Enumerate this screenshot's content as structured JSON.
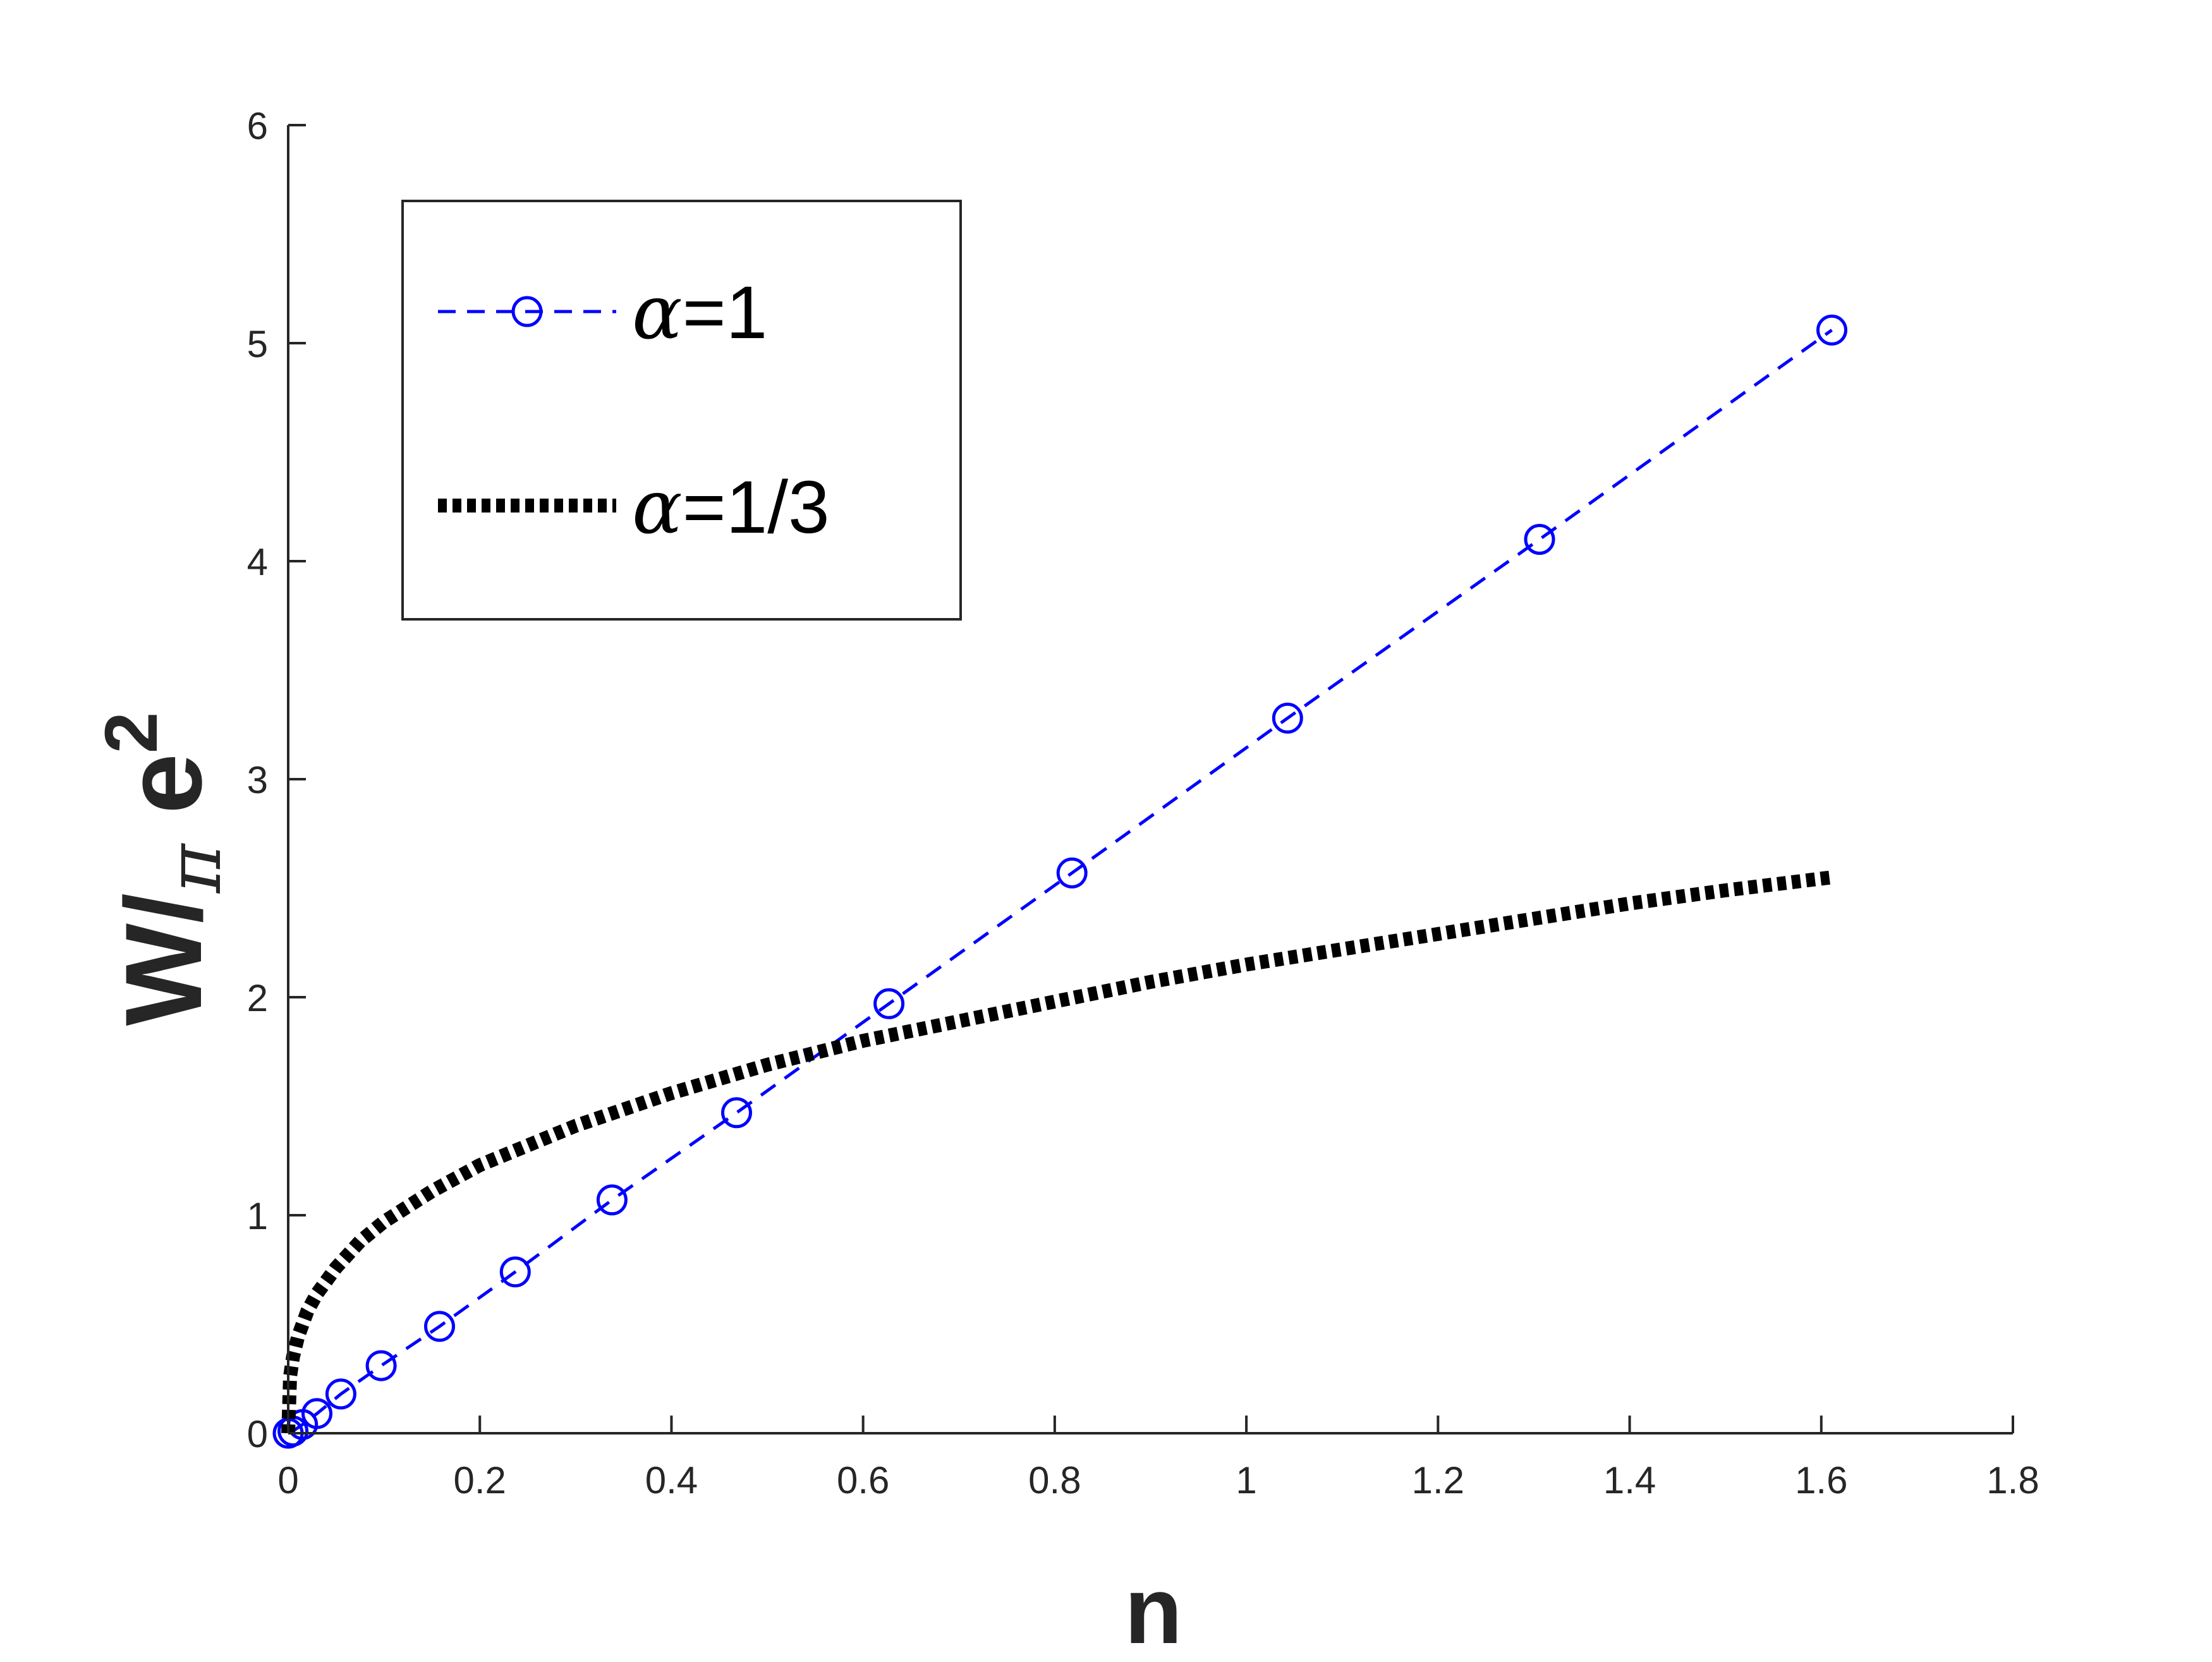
{
  "chart_data": {
    "type": "line",
    "xlabel": "n",
    "ylabel": {
      "prefix": "W/",
      "subscript": "π",
      "base": " e",
      "superscript": "2"
    },
    "xlim": [
      0,
      1.8
    ],
    "ylim": [
      0,
      6
    ],
    "xticks": [
      0,
      0.2,
      0.4,
      0.6,
      0.8,
      1,
      1.2,
      1.4,
      1.6,
      1.8
    ],
    "xtick_labels": [
      "0",
      "0.2",
      "0.4",
      "0.6",
      "0.8",
      "1",
      "1.2",
      "1.4",
      "1.6",
      "1.8"
    ],
    "yticks": [
      0,
      1,
      2,
      3,
      4,
      5,
      6
    ],
    "ytick_labels": [
      "0",
      "1",
      "2",
      "3",
      "4",
      "5",
      "6"
    ],
    "grid": false,
    "legend_position": "top-left",
    "series": [
      {
        "name": "α=1",
        "legend_greek": "α",
        "legend_rest": "=1",
        "color": "#0000ff",
        "line_style": "dashed",
        "marker": "circle",
        "x": [
          0,
          0.005,
          0.015,
          0.03,
          0.055,
          0.097,
          0.158,
          0.237,
          0.338,
          0.468,
          0.627,
          0.818,
          1.043,
          1.306,
          1.611
        ],
        "y": [
          0,
          0.01,
          0.04,
          0.09,
          0.18,
          0.31,
          0.49,
          0.74,
          1.07,
          1.47,
          1.97,
          2.57,
          3.28,
          4.1,
          5.06
        ]
      },
      {
        "name": "α=1/3",
        "legend_greek": "α",
        "legend_rest": "=1/3",
        "color": "#000000",
        "line_style": "dotted",
        "marker": "none",
        "x": [
          0,
          0.002,
          0.005,
          0.01,
          0.02,
          0.03,
          0.05,
          0.075,
          0.1,
          0.15,
          0.2,
          0.3,
          0.4,
          0.5,
          0.6,
          0.7,
          0.8,
          0.9,
          1.0,
          1.1,
          1.2,
          1.3,
          1.4,
          1.5,
          1.611
        ],
        "y": [
          0,
          0.26,
          0.35,
          0.44,
          0.56,
          0.64,
          0.76,
          0.88,
          0.97,
          1.11,
          1.23,
          1.41,
          1.56,
          1.69,
          1.8,
          1.89,
          1.98,
          2.07,
          2.15,
          2.22,
          2.29,
          2.36,
          2.43,
          2.49,
          2.55
        ]
      }
    ]
  }
}
